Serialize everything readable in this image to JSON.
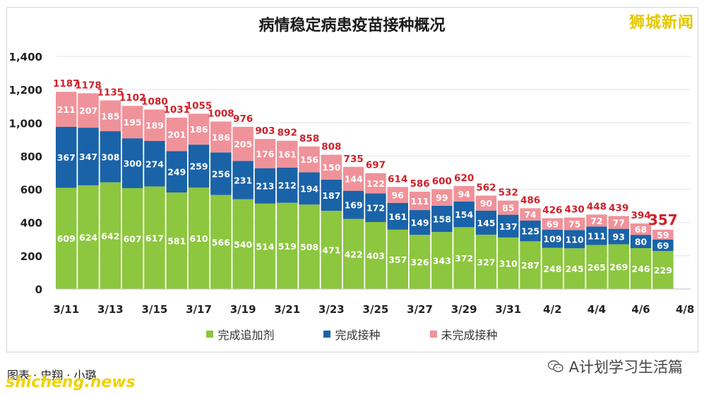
{
  "brand": "狮城新闻",
  "caption": "图表 · 史翔 · 小璐",
  "watermark": "shicheng.news",
  "wechat_account": "A计划学习生活篇",
  "legend": [
    {
      "label": "完成追加剂",
      "color": "#8dc63f"
    },
    {
      "label": "完成接种",
      "color": "#1a63a8"
    },
    {
      "label": "未完成接种",
      "color": "#f0929a"
    }
  ],
  "chart_data": {
    "type": "bar",
    "stacked": true,
    "title": "病情稳定病患疫苗接种概况",
    "xlabel": "",
    "ylabel": "",
    "ylim": [
      0,
      1400
    ],
    "yticks": [
      0,
      200,
      400,
      600,
      800,
      1000,
      1200,
      1400
    ],
    "ytick_labels": [
      "0",
      "200",
      "400",
      "600",
      "800",
      "1,000",
      "1,200",
      "1,400"
    ],
    "categories": [
      "3/11",
      "3/12",
      "3/13",
      "3/14",
      "3/15",
      "3/16",
      "3/17",
      "3/18",
      "3/19",
      "3/20",
      "3/21",
      "3/22",
      "3/23",
      "3/24",
      "3/25",
      "3/26",
      "3/27",
      "3/28",
      "3/29",
      "3/30",
      "3/31",
      "4/1",
      "4/2",
      "4/3",
      "4/4",
      "4/5",
      "4/6",
      "4/7"
    ],
    "xtick_labels": [
      "3/11",
      "3/13",
      "3/15",
      "3/17",
      "3/19",
      "3/21",
      "3/23",
      "3/25",
      "3/27",
      "3/29",
      "3/31",
      "4/2",
      "4/4",
      "4/6",
      "4/8"
    ],
    "series": [
      {
        "name": "完成追加剂",
        "color": "#8dc63f",
        "values": [
          609,
          624,
          642,
          607,
          617,
          581,
          610,
          566,
          540,
          514,
          519,
          508,
          471,
          422,
          403,
          357,
          326,
          343,
          372,
          327,
          310,
          287,
          248,
          245,
          265,
          269,
          246,
          229
        ]
      },
      {
        "name": "完成接种",
        "color": "#1a63a8",
        "values": [
          367,
          347,
          308,
          300,
          274,
          249,
          259,
          256,
          231,
          213,
          212,
          194,
          187,
          169,
          172,
          161,
          149,
          158,
          154,
          145,
          137,
          125,
          109,
          110,
          111,
          93,
          80,
          69
        ]
      },
      {
        "name": "未完成接种",
        "color": "#f0929a",
        "values": [
          211,
          207,
          185,
          195,
          189,
          201,
          186,
          186,
          205,
          176,
          161,
          156,
          150,
          144,
          122,
          96,
          111,
          99,
          94,
          90,
          85,
          74,
          69,
          75,
          72,
          77,
          68,
          59
        ]
      }
    ],
    "totals": [
      1187,
      1178,
      1135,
      1102,
      1080,
      1031,
      1055,
      1008,
      976,
      903,
      892,
      858,
      808,
      735,
      697,
      614,
      586,
      600,
      620,
      562,
      532,
      486,
      426,
      430,
      448,
      439,
      394,
      357
    ],
    "grid": true,
    "legend_position": "bottom"
  }
}
